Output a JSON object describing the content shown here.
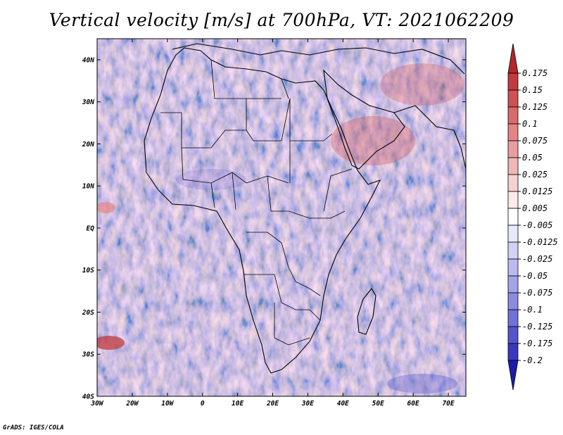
{
  "title": "Vertical velocity [m/s] at 700hPa, VT: 2021062209",
  "credit": "GrADS: IGES/COLA",
  "map": {
    "region": "Africa",
    "lon_range": [
      -30,
      75
    ],
    "lat_range": [
      -40,
      45
    ],
    "lat_labels": [
      "40N",
      "30N",
      "20N",
      "10N",
      "EQ",
      "10S",
      "20S",
      "30S",
      "40S"
    ],
    "lon_labels": [
      "30W",
      "20W",
      "10W",
      "0",
      "10E",
      "20E",
      "30E",
      "40E",
      "50E",
      "60E",
      "70E"
    ],
    "field": "Vertical velocity",
    "units": "m/s",
    "level": "700hPa",
    "valid_time": "2021062209"
  },
  "colorbar": {
    "labels": [
      "0.175",
      "0.15",
      "0.125",
      "0.1",
      "0.075",
      "0.05",
      "0.025",
      "0.0125",
      "0.005",
      "-0.005",
      "-0.0125",
      "-0.025",
      "-0.05",
      "-0.075",
      "-0.1",
      "-0.125",
      "-0.175",
      "-0.2"
    ],
    "colors": [
      "#b3262a",
      "#c13a3e",
      "#cf5154",
      "#da6a6b",
      "#e38486",
      "#ea9d9e",
      "#f1b7b7",
      "#f7d1d1",
      "#fcebeb",
      "#ffffff",
      "#e9e9fc",
      "#d2d2f7",
      "#bbbbf1",
      "#a3a3ea",
      "#8b8be2",
      "#7171d8",
      "#5555cb",
      "#3838bd",
      "#1c1caa"
    ]
  }
}
